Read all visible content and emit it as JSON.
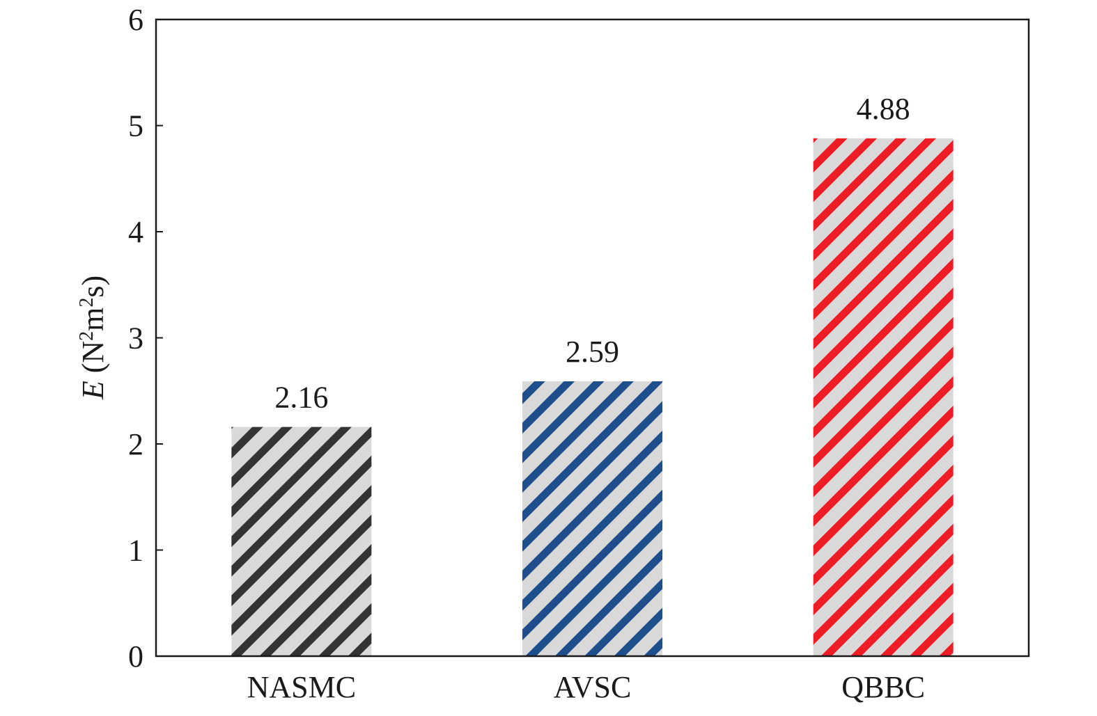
{
  "chart_data": {
    "type": "bar",
    "categories": [
      "NASMC",
      "AVSC",
      "QBBC"
    ],
    "values": [
      2.16,
      2.59,
      4.88
    ],
    "value_labels": [
      "2.16",
      "2.59",
      "4.88"
    ],
    "title": "",
    "xlabel": "",
    "ylabel": {
      "symbol": "E",
      "unit_open": " (N",
      "exp1": "2",
      "unit_mid": "m",
      "exp2": "2",
      "unit_close": "s)"
    },
    "ylim": [
      0,
      6
    ],
    "yticks": [
      "0",
      "1",
      "2",
      "3",
      "4",
      "5",
      "6"
    ],
    "grid": false,
    "legend": "none",
    "bar_colors": [
      "#333333",
      "#1f4e8c",
      "#ee1c24"
    ],
    "bar_background": "#d9d9d9"
  }
}
